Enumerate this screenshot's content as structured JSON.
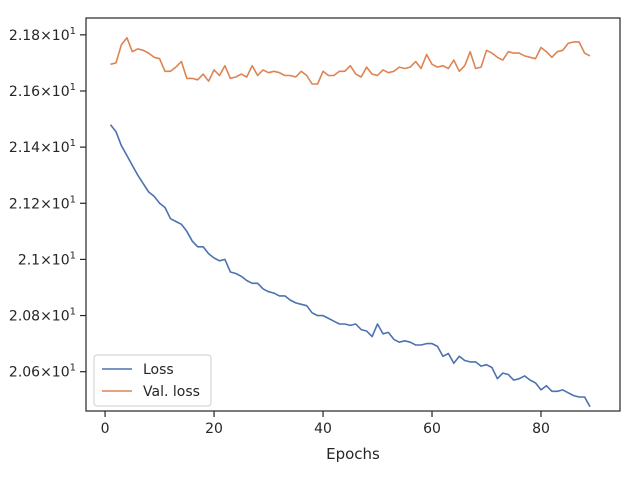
{
  "chart_data": {
    "type": "line",
    "title": "",
    "xlabel": "Epochs",
    "ylabel": "",
    "xlim": [
      -3.5,
      94.5
    ],
    "ylim": [
      20.46,
      21.86
    ],
    "grid": false,
    "legend_position": "lower-left",
    "x_ticks": [
      {
        "value": 0,
        "label": "0"
      },
      {
        "value": 20,
        "label": "20"
      },
      {
        "value": 40,
        "label": "40"
      },
      {
        "value": 60,
        "label": "60"
      },
      {
        "value": 80,
        "label": "80"
      }
    ],
    "y_ticks": [
      {
        "value": 20.6,
        "base": "2.06",
        "exp": "1"
      },
      {
        "value": 20.8,
        "base": "2.08",
        "exp": "1"
      },
      {
        "value": 21.0,
        "base": "2.1",
        "exp": "1"
      },
      {
        "value": 21.2,
        "base": "2.12",
        "exp": "1"
      },
      {
        "value": 21.4,
        "base": "2.14",
        "exp": "1"
      },
      {
        "value": 21.6,
        "base": "2.16",
        "exp": "1"
      },
      {
        "value": 21.8,
        "base": "2.18",
        "exp": "1"
      }
    ],
    "series": [
      {
        "name": "Loss",
        "color": "#4c72b0",
        "x_start": 1,
        "values": [
          21.48,
          21.455,
          21.405,
          21.37,
          21.335,
          21.3,
          21.27,
          21.24,
          21.225,
          21.2,
          21.185,
          21.145,
          21.135,
          21.125,
          21.1,
          21.065,
          21.045,
          21.045,
          21.02,
          21.005,
          20.995,
          21.0,
          20.955,
          20.95,
          20.94,
          20.925,
          20.915,
          20.915,
          20.895,
          20.885,
          20.88,
          20.87,
          20.87,
          20.855,
          20.845,
          20.84,
          20.835,
          20.81,
          20.8,
          20.8,
          20.79,
          20.78,
          20.77,
          20.77,
          20.765,
          20.77,
          20.75,
          20.745,
          20.725,
          20.77,
          20.735,
          20.74,
          20.715,
          20.705,
          20.71,
          20.705,
          20.695,
          20.695,
          20.7,
          20.7,
          20.69,
          20.655,
          20.665,
          20.63,
          20.655,
          20.64,
          20.635,
          20.635,
          20.62,
          20.625,
          20.615,
          20.575,
          20.595,
          20.59,
          20.57,
          20.575,
          20.585,
          20.57,
          20.56,
          20.535,
          20.55,
          20.53,
          20.53,
          20.535,
          20.525,
          20.515,
          20.51,
          20.51,
          20.475
        ]
      },
      {
        "name": "Val. loss",
        "color": "#dd8452",
        "x_start": 1,
        "values": [
          21.695,
          21.7,
          21.765,
          21.79,
          21.74,
          21.75,
          21.745,
          21.735,
          21.72,
          21.715,
          21.67,
          21.67,
          21.685,
          21.705,
          21.645,
          21.645,
          21.64,
          21.66,
          21.635,
          21.675,
          21.655,
          21.69,
          21.645,
          21.65,
          21.66,
          21.65,
          21.69,
          21.655,
          21.675,
          21.665,
          21.67,
          21.665,
          21.655,
          21.655,
          21.65,
          21.67,
          21.655,
          21.625,
          21.625,
          21.67,
          21.655,
          21.655,
          21.67,
          21.67,
          21.69,
          21.66,
          21.65,
          21.685,
          21.66,
          21.655,
          21.675,
          21.665,
          21.67,
          21.685,
          21.68,
          21.685,
          21.705,
          21.68,
          21.73,
          21.695,
          21.685,
          21.69,
          21.68,
          21.71,
          21.67,
          21.69,
          21.74,
          21.68,
          21.685,
          21.745,
          21.735,
          21.72,
          21.71,
          21.74,
          21.735,
          21.735,
          21.725,
          21.72,
          21.715,
          21.755,
          21.74,
          21.72,
          21.74,
          21.745,
          21.77,
          21.775,
          21.775,
          21.735,
          21.725
        ]
      }
    ]
  }
}
